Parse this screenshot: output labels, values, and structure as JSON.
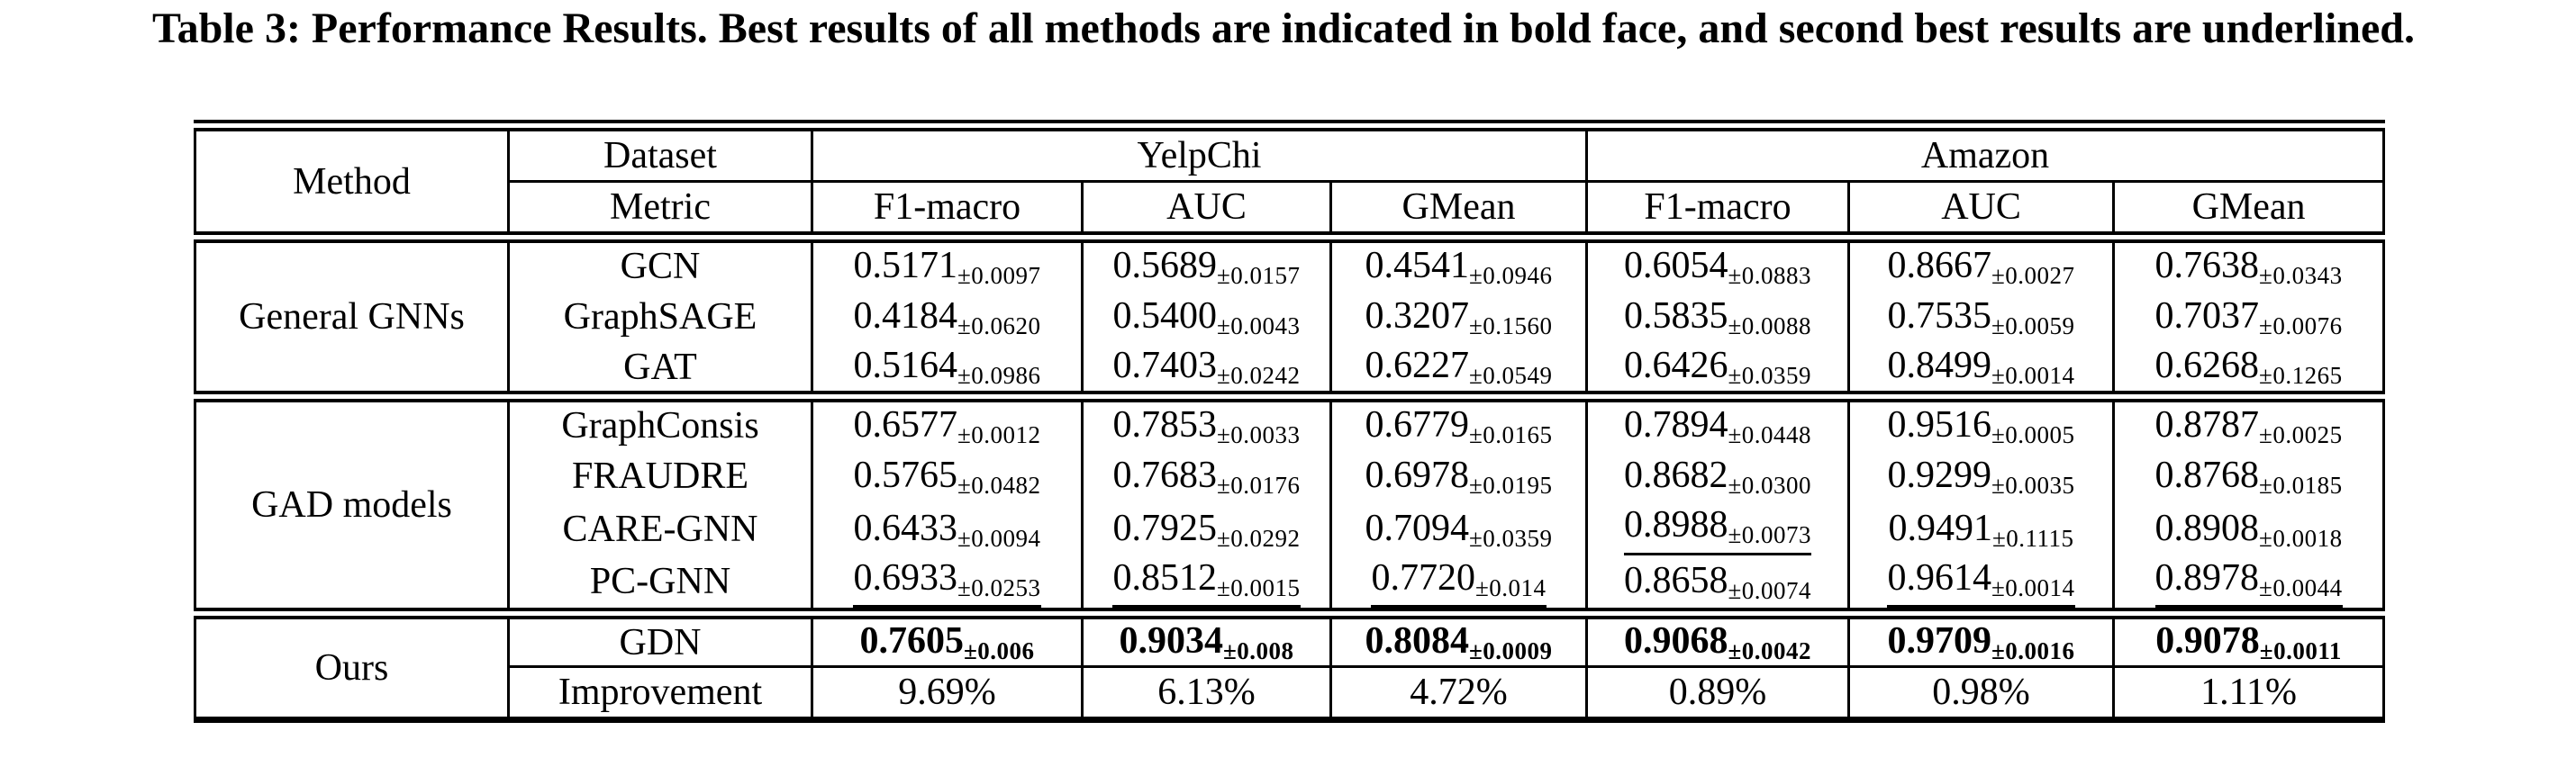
{
  "caption": "Table 3: Performance Results. Best results of all methods are indicated in bold face, and second best results are underlined.",
  "colors": {
    "text": "#000000",
    "background": "#ffffff"
  },
  "table": {
    "header": {
      "method_label": "Method",
      "dataset_label": "Dataset",
      "metric_label": "Metric",
      "datasets": [
        "YelpChi",
        "Amazon"
      ],
      "metrics": [
        "F1-macro",
        "AUC",
        "GMean"
      ]
    },
    "groups": [
      {
        "name": "General GNNs",
        "rows": [
          {
            "model": "GCN",
            "cells": [
              {
                "v": "0.5171",
                "pm": "0.0097"
              },
              {
                "v": "0.5689",
                "pm": "0.0157"
              },
              {
                "v": "0.4541",
                "pm": "0.0946"
              },
              {
                "v": "0.6054",
                "pm": "0.0883"
              },
              {
                "v": "0.8667",
                "pm": "0.0027"
              },
              {
                "v": "0.7638",
                "pm": "0.0343"
              }
            ]
          },
          {
            "model": "GraphSAGE",
            "cells": [
              {
                "v": "0.4184",
                "pm": "0.0620"
              },
              {
                "v": "0.5400",
                "pm": "0.0043"
              },
              {
                "v": "0.3207",
                "pm": "0.1560"
              },
              {
                "v": "0.5835",
                "pm": "0.0088"
              },
              {
                "v": "0.7535",
                "pm": "0.0059"
              },
              {
                "v": "0.7037",
                "pm": "0.0076"
              }
            ]
          },
          {
            "model": "GAT",
            "cells": [
              {
                "v": "0.5164",
                "pm": "0.0986"
              },
              {
                "v": "0.7403",
                "pm": "0.0242"
              },
              {
                "v": "0.6227",
                "pm": "0.0549"
              },
              {
                "v": "0.6426",
                "pm": "0.0359"
              },
              {
                "v": "0.8499",
                "pm": "0.0014"
              },
              {
                "v": "0.6268",
                "pm": "0.1265"
              }
            ]
          }
        ]
      },
      {
        "name": "GAD models",
        "rows": [
          {
            "model": "GraphConsis",
            "cells": [
              {
                "v": "0.6577",
                "pm": "0.0012"
              },
              {
                "v": "0.7853",
                "pm": "0.0033"
              },
              {
                "v": "0.6779",
                "pm": "0.0165"
              },
              {
                "v": "0.7894",
                "pm": "0.0448"
              },
              {
                "v": "0.9516",
                "pm": "0.0005"
              },
              {
                "v": "0.8787",
                "pm": "0.0025"
              }
            ]
          },
          {
            "model": "FRAUDRE",
            "cells": [
              {
                "v": "0.5765",
                "pm": "0.0482"
              },
              {
                "v": "0.7683",
                "pm": "0.0176"
              },
              {
                "v": "0.6978",
                "pm": "0.0195"
              },
              {
                "v": "0.8682",
                "pm": "0.0300"
              },
              {
                "v": "0.9299",
                "pm": "0.0035"
              },
              {
                "v": "0.8768",
                "pm": "0.0185"
              }
            ]
          },
          {
            "model": "CARE-GNN",
            "cells": [
              {
                "v": "0.6433",
                "pm": "0.0094"
              },
              {
                "v": "0.7925",
                "pm": "0.0292"
              },
              {
                "v": "0.7094",
                "pm": "0.0359"
              },
              {
                "v": "0.8988",
                "pm": "0.0073",
                "u": true
              },
              {
                "v": "0.9491",
                "pm": "0.1115"
              },
              {
                "v": "0.8908",
                "pm": "0.0018"
              }
            ]
          },
          {
            "model": "PC-GNN",
            "cells": [
              {
                "v": "0.6933",
                "pm": "0.0253",
                "u": true
              },
              {
                "v": "0.8512",
                "pm": "0.0015",
                "u": true
              },
              {
                "v": "0.7720",
                "pm": "0.014",
                "u": true
              },
              {
                "v": "0.8658",
                "pm": "0.0074"
              },
              {
                "v": "0.9614",
                "pm": "0.0014",
                "u": true
              },
              {
                "v": "0.8978",
                "pm": "0.0044",
                "u": true
              }
            ]
          }
        ]
      },
      {
        "name": "Ours",
        "rows": [
          {
            "model": "GDN",
            "bold": true,
            "rule_below": true,
            "cells": [
              {
                "v": "0.7605",
                "pm": "0.006"
              },
              {
                "v": "0.9034",
                "pm": "0.008"
              },
              {
                "v": "0.8084",
                "pm": "0.0009"
              },
              {
                "v": "0.9068",
                "pm": "0.0042"
              },
              {
                "v": "0.9709",
                "pm": "0.0016"
              },
              {
                "v": "0.9078",
                "pm": "0.0011"
              }
            ]
          },
          {
            "model": "Improvement",
            "plain": [
              "9.69%",
              "6.13%",
              "4.72%",
              "0.89%",
              "0.98%",
              "1.11%"
            ]
          }
        ]
      }
    ]
  }
}
